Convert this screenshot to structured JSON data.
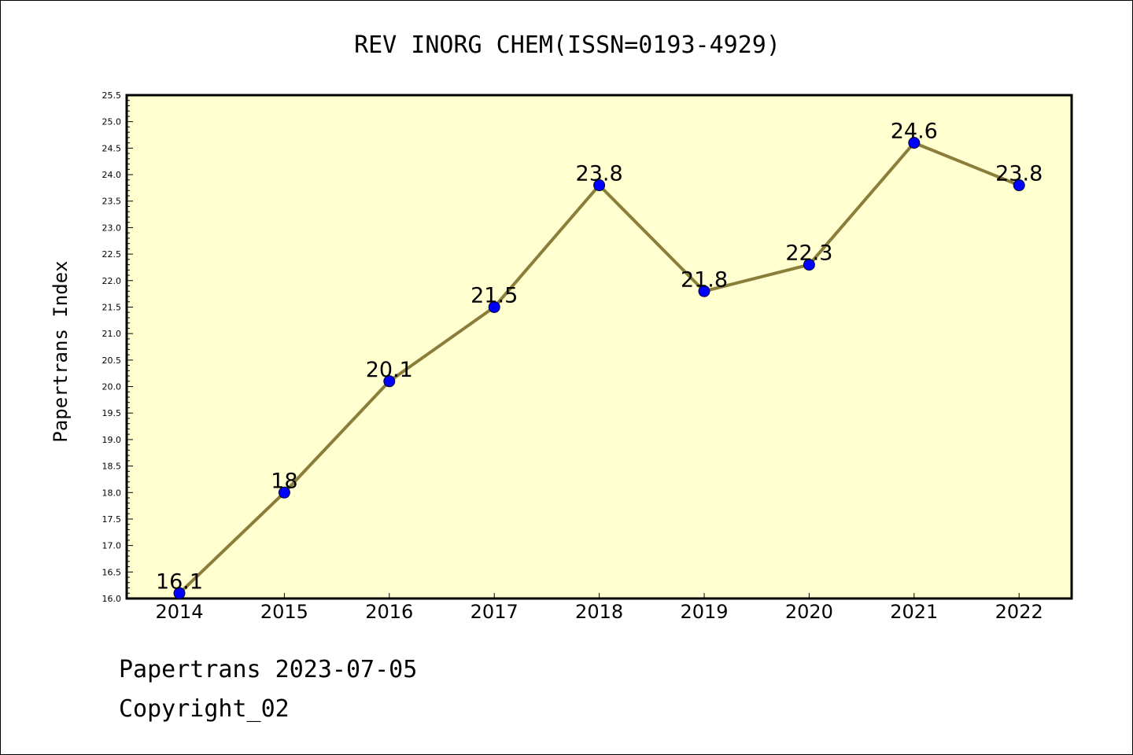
{
  "footer": {
    "line1": "Papertrans 2023-07-05",
    "line2": "Copyright_02"
  },
  "chart_data": {
    "type": "line",
    "title": "REV INORG CHEM(ISSN=0193-4929)",
    "ylabel": "Papertrans Index",
    "xlabel": "",
    "x": [
      "2014",
      "2015",
      "2016",
      "2017",
      "2018",
      "2019",
      "2020",
      "2021",
      "2022"
    ],
    "series": [
      {
        "values": [
          16.1,
          18.0,
          20.1,
          21.5,
          23.8,
          21.8,
          22.3,
          24.6,
          23.8
        ],
        "labels": [
          "16.1",
          "18",
          "20.1",
          "21.5",
          "23.8",
          "21.8",
          "22.3",
          "24.6",
          "23.8"
        ]
      }
    ],
    "ylim": [
      16.0,
      25.5
    ],
    "yticks": [
      "16.0",
      "16.5",
      "17.0",
      "17.5",
      "18.0",
      "18.5",
      "19.0",
      "19.5",
      "20.0",
      "20.5",
      "21.0",
      "21.5",
      "22.0",
      "22.5",
      "23.0",
      "23.5",
      "24.0",
      "24.5",
      "25.0",
      "25.5"
    ],
    "grid": false,
    "colors": {
      "plot_background": "#ffffd0",
      "line": "#8b7d3a",
      "marker": "#0000ff"
    }
  }
}
